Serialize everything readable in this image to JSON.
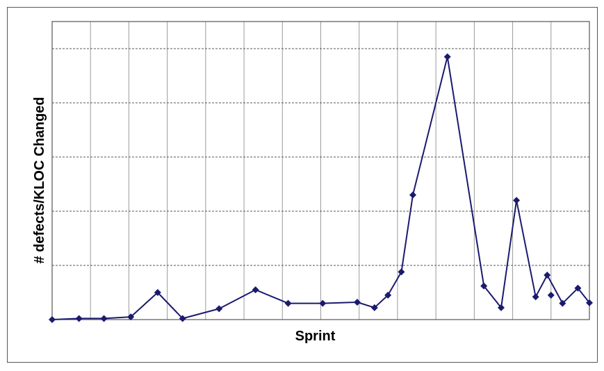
{
  "chart_data": {
    "type": "line",
    "xlabel": "Sprint",
    "ylabel": "# defects/KLOC Changed",
    "ylim": [
      0,
      5.5
    ],
    "x_grid_categories": 14,
    "grid": true,
    "show_tick_labels": false,
    "colors": {
      "line": "#1a1a6e",
      "marker": "#1a1a6e",
      "grid_h": "#555555",
      "grid_v": "#9a9a9a",
      "plot_border": "#555555"
    },
    "series": [
      {
        "x": [
          0.0,
          0.7,
          1.35,
          2.05,
          2.75,
          3.4,
          4.35,
          5.3,
          6.15,
          7.05,
          7.95,
          8.4,
          8.75,
          9.1,
          9.4,
          10.3,
          11.25,
          11.7,
          12.1,
          12.6,
          12.9,
          13.3,
          13.7
        ],
        "values": [
          0.0,
          0.02,
          0.02,
          0.05,
          0.5,
          0.02,
          0.2,
          0.55,
          0.3,
          0.3,
          0.32,
          0.22,
          0.45,
          0.88,
          2.3,
          4.85,
          0.62,
          0.22,
          2.2,
          0.42,
          0.82,
          0.3,
          0.58
        ]
      }
    ],
    "extra_points": [
      {
        "x": 13.0,
        "value": 0.45
      },
      {
        "x": 14.0,
        "value": 0.31
      }
    ]
  }
}
